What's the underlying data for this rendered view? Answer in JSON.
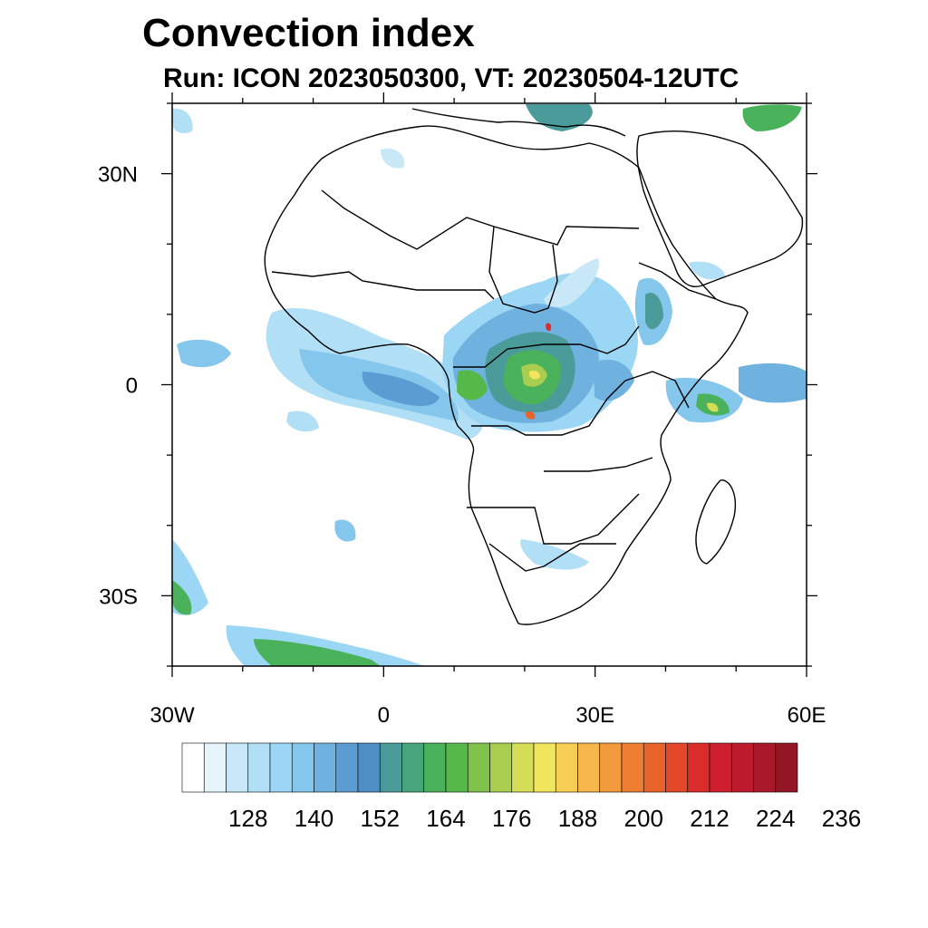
{
  "header": {
    "title": "Convection index",
    "subtitle": "Run: ICON 2023050300,  VT: 20230504-12UTC"
  },
  "map": {
    "extent": {
      "lon": [
        -30,
        60
      ],
      "lat": [
        -40,
        40
      ]
    },
    "land_color": "#ffffff",
    "ocean_color": "#ffffff",
    "border_color": "#000000",
    "x_ticks": [
      {
        "value": -30,
        "label": "30W"
      },
      {
        "value": 0,
        "label": "0"
      },
      {
        "value": 30,
        "label": "30E"
      },
      {
        "value": 60,
        "label": "60E"
      }
    ],
    "y_ticks": [
      {
        "value": 30,
        "label": "30N"
      },
      {
        "value": 0,
        "label": "0"
      },
      {
        "value": -30,
        "label": "30S"
      }
    ]
  },
  "colorbar": {
    "colors": [
      "#ffffff",
      "#e6f4fb",
      "#c8e8f7",
      "#b1dff5",
      "#9bd7f4",
      "#85c6ec",
      "#6fb2e0",
      "#5b9dd3",
      "#4e8ec4",
      "#4b9b9a",
      "#47a57c",
      "#49b25a",
      "#55b94a",
      "#80c24c",
      "#a9cd4e",
      "#d5dc55",
      "#f2e55e",
      "#f7cf55",
      "#f6b64a",
      "#f49a3e",
      "#ee7f32",
      "#e8632a",
      "#e24829",
      "#da2d2b",
      "#cd1f2f",
      "#bc1b2d",
      "#a9182a",
      "#921624"
    ],
    "labels": [
      "128",
      "140",
      "152",
      "164",
      "176",
      "188",
      "200",
      "212",
      "224",
      "236"
    ]
  }
}
